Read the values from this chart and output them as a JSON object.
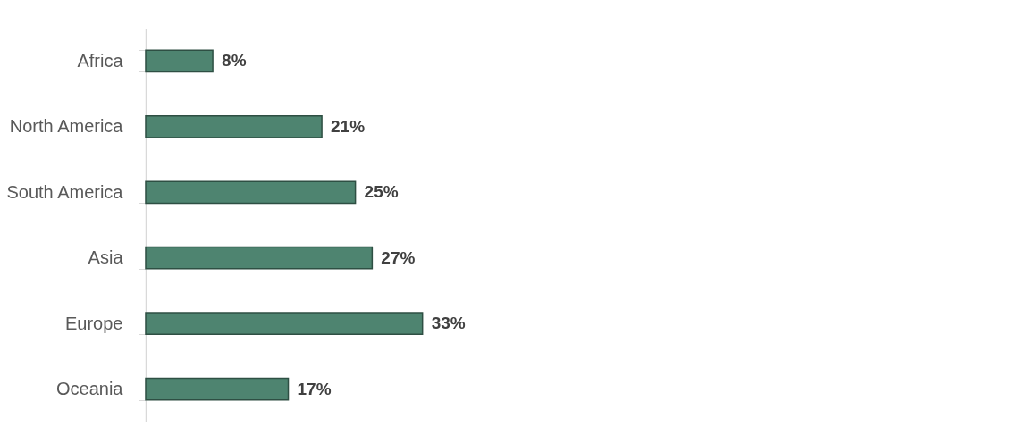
{
  "chart_data": {
    "type": "bar",
    "orientation": "horizontal",
    "categories": [
      "Africa",
      "North America",
      "South America",
      "Asia",
      "Europe",
      "Oceania"
    ],
    "values": [
      8,
      21,
      25,
      27,
      33,
      17
    ],
    "value_labels": [
      "8%",
      "21%",
      "25%",
      "27%",
      "33%",
      "17%"
    ],
    "color": "#4e8470",
    "grid": false
  }
}
